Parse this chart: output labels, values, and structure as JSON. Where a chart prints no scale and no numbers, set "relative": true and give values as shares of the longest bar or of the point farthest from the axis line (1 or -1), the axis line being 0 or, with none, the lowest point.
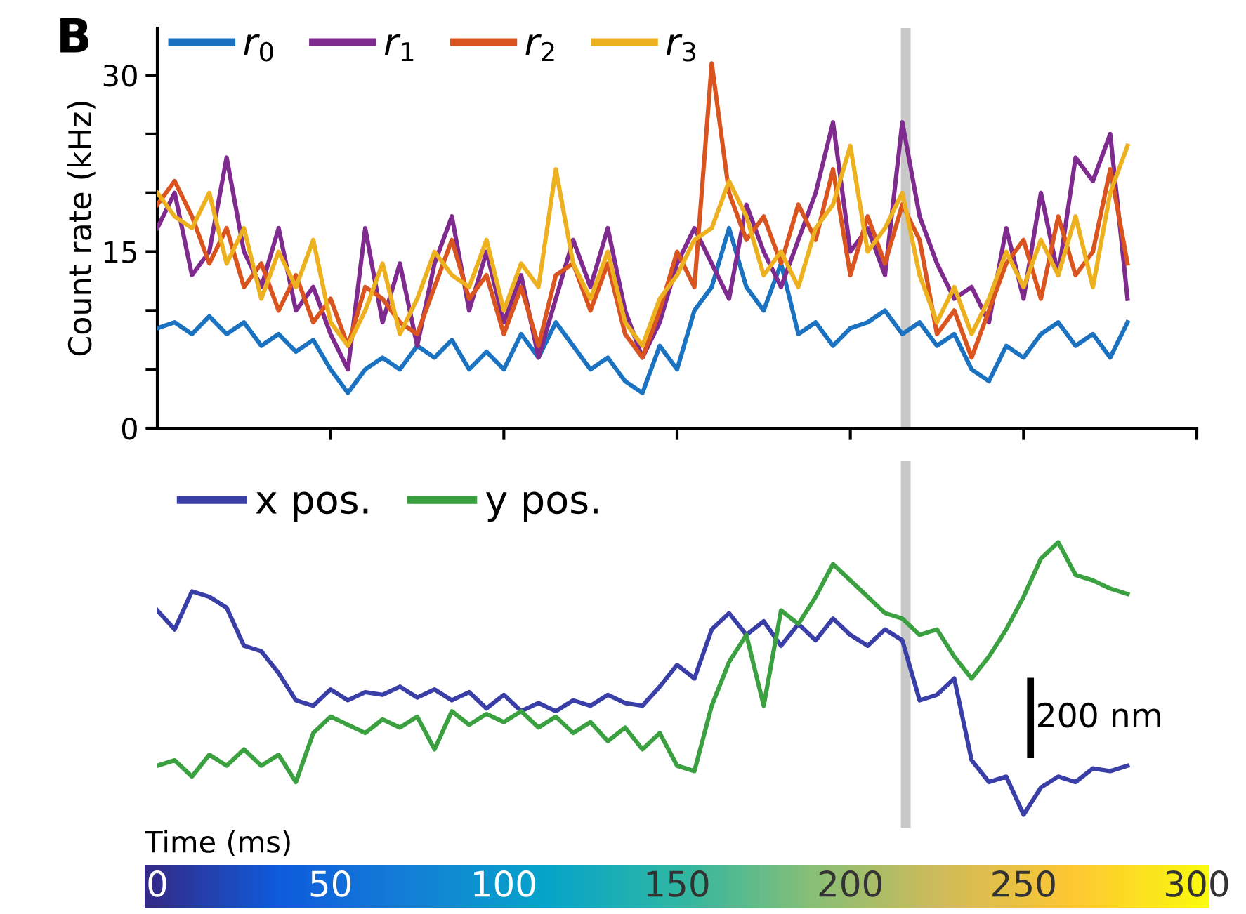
{
  "chart_data": [
    {
      "type": "line",
      "ylabel": "Count rate (kHz)",
      "annotations": [
        "B"
      ],
      "x": [
        0,
        5,
        10,
        15,
        20,
        25,
        30,
        35,
        40,
        45,
        50,
        55,
        60,
        65,
        70,
        75,
        80,
        85,
        90,
        95,
        100,
        105,
        110,
        115,
        120,
        125,
        130,
        135,
        140,
        145,
        150,
        155,
        160,
        165,
        170,
        175,
        180,
        185,
        190,
        195,
        200,
        205,
        210,
        215,
        220,
        225,
        230,
        235,
        240,
        245,
        250,
        255,
        260,
        265,
        270,
        275,
        280
      ],
      "xlim": [
        0,
        300
      ],
      "xticks": [
        {
          "value": 50,
          "label": null
        },
        {
          "value": 100,
          "label": null
        },
        {
          "value": 150,
          "label": null
        },
        {
          "value": 200,
          "label": null
        },
        {
          "value": 250,
          "label": null
        },
        {
          "value": 300,
          "label": null
        }
      ],
      "ylim": [
        0,
        34
      ],
      "yticks": [
        0,
        {
          "value": 5,
          "label": null
        },
        {
          "value": 10,
          "label": null
        },
        15,
        {
          "value": 20,
          "label": null
        },
        {
          "value": 25,
          "label": null
        },
        30
      ],
      "legend": "top left",
      "grid": false,
      "tick_labels": "y",
      "ref_lines": [
        {
          "axis": "x",
          "value": 216,
          "color": "#c8c8c8"
        }
      ],
      "series": [
        {
          "name": "r$_{0}$",
          "color": "#1a72c0",
          "values": [
            8.5,
            9,
            8,
            9.5,
            8,
            9,
            7,
            8,
            6.5,
            7.5,
            5,
            3,
            5,
            6,
            5,
            7,
            6,
            7.5,
            5,
            6.5,
            5,
            8,
            6,
            9,
            7,
            5,
            6,
            4,
            3,
            7,
            5,
            10,
            12,
            17,
            12,
            10,
            14,
            8,
            9,
            7,
            8.5,
            9,
            10,
            8,
            9,
            7,
            8,
            5,
            4,
            7,
            6,
            8,
            9,
            7,
            8,
            6,
            9
          ]
        },
        {
          "name": "r$_{1}$",
          "color": "#7e2a8e",
          "values": [
            17,
            20,
            13,
            15,
            23,
            15,
            12,
            17,
            10,
            12,
            8,
            5,
            17,
            9,
            14,
            7,
            14,
            18,
            10,
            15,
            9,
            13,
            6,
            11,
            16,
            12,
            17,
            10,
            6,
            9,
            14,
            17,
            14,
            11,
            19,
            15,
            12,
            16,
            20,
            26,
            15,
            17,
            13,
            26,
            18,
            14,
            11,
            12,
            9,
            17,
            11,
            20,
            13,
            23,
            21,
            25,
            11
          ]
        },
        {
          "name": "r$_{2}$",
          "color": "#d9541e",
          "values": [
            19,
            21,
            18,
            14,
            17,
            12,
            14,
            10,
            13,
            9,
            11,
            7,
            12,
            11,
            9,
            8,
            12,
            16,
            11,
            13,
            8,
            12,
            7,
            13,
            14,
            10,
            14,
            8,
            6,
            10,
            15,
            12,
            31,
            20,
            16,
            18,
            14,
            19,
            16,
            22,
            13,
            18,
            14,
            19,
            16,
            8,
            10,
            6,
            10,
            14,
            16,
            11,
            18,
            13,
            15,
            22,
            14
          ]
        },
        {
          "name": "r$_{3}$",
          "color": "#edb120",
          "values": [
            20,
            18,
            17,
            20,
            14,
            17,
            11,
            15,
            12,
            16,
            9,
            7,
            10,
            14,
            8,
            11,
            15,
            13,
            12,
            16,
            10,
            14,
            12,
            22,
            14,
            11,
            15,
            9,
            7,
            11,
            13,
            16,
            17,
            21,
            18,
            13,
            15,
            12,
            17,
            19,
            24,
            15,
            17,
            20,
            13,
            9,
            12,
            8,
            11,
            15,
            12,
            16,
            13,
            18,
            12,
            20,
            24
          ]
        }
      ]
    },
    {
      "type": "line",
      "relative": true,
      "annotations": [
        "200 nm"
      ],
      "legend": "top left",
      "x": [
        0,
        5,
        10,
        15,
        20,
        25,
        30,
        35,
        40,
        45,
        50,
        55,
        60,
        65,
        70,
        75,
        80,
        85,
        90,
        95,
        100,
        105,
        110,
        115,
        120,
        125,
        130,
        135,
        140,
        145,
        150,
        155,
        160,
        165,
        170,
        175,
        180,
        185,
        190,
        195,
        200,
        205,
        210,
        215,
        220,
        225,
        230,
        235,
        240,
        245,
        250,
        255,
        260,
        265,
        270,
        275,
        280
      ],
      "xlim": [
        0,
        300
      ],
      "xticks": [
        0,
        50,
        100,
        150,
        200,
        250,
        300
      ],
      "xlabel": "Time (ms)",
      "ref_lines": [
        {
          "axis": "x",
          "value": 216,
          "color": "#c8c8c8"
        }
      ],
      "series": [
        {
          "name": "x pos.",
          "color": "#3a3fa8",
          "values": [
            0.75,
            0.68,
            0.82,
            0.8,
            0.76,
            0.62,
            0.6,
            0.52,
            0.42,
            0.4,
            0.46,
            0.42,
            0.45,
            0.44,
            0.47,
            0.43,
            0.46,
            0.42,
            0.45,
            0.39,
            0.44,
            0.38,
            0.41,
            0.38,
            0.42,
            0.4,
            0.44,
            0.41,
            0.4,
            0.47,
            0.55,
            0.5,
            0.68,
            0.74,
            0.66,
            0.71,
            0.62,
            0.7,
            0.64,
            0.72,
            0.66,
            0.62,
            0.68,
            0.64,
            0.42,
            0.44,
            0.5,
            0.2,
            0.12,
            0.14,
            0.0,
            0.1,
            0.14,
            0.12,
            0.17,
            0.16,
            0.18
          ]
        },
        {
          "name": "y pos.",
          "color": "#3aa040",
          "values": [
            0.18,
            0.2,
            0.14,
            0.22,
            0.18,
            0.24,
            0.18,
            0.22,
            0.12,
            0.3,
            0.36,
            0.33,
            0.3,
            0.35,
            0.32,
            0.36,
            0.24,
            0.38,
            0.33,
            0.37,
            0.34,
            0.38,
            0.32,
            0.36,
            0.3,
            0.34,
            0.27,
            0.32,
            0.24,
            0.3,
            0.18,
            0.16,
            0.4,
            0.56,
            0.66,
            0.4,
            0.75,
            0.7,
            0.8,
            0.92,
            0.86,
            0.8,
            0.74,
            0.72,
            0.66,
            0.68,
            0.58,
            0.5,
            0.58,
            0.68,
            0.8,
            0.94,
            1.0,
            0.88,
            0.86,
            0.83,
            0.81
          ]
        }
      ]
    }
  ]
}
